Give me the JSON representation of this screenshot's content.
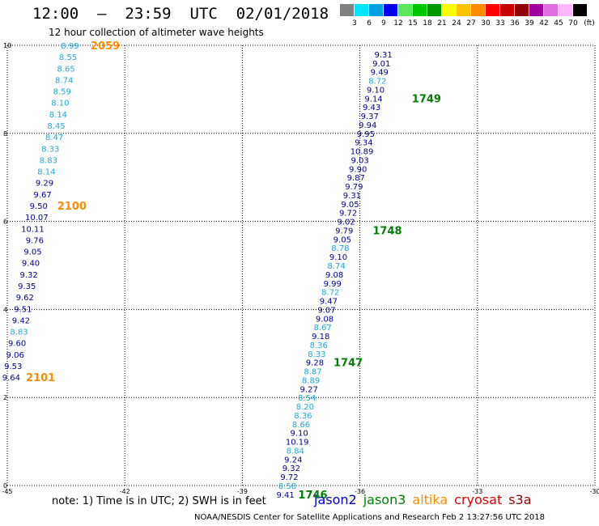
{
  "header": {
    "title": "12:00  —  23:59  UTC  02/01/2018",
    "subtitle": "12 hour collection of altimeter wave heights"
  },
  "color_scale": {
    "unit": "(ft)",
    "entries": [
      {
        "color": "#808080",
        "label": "3"
      },
      {
        "color": "#00e5ff",
        "label": "6"
      },
      {
        "color": "#00a0e0",
        "label": "9"
      },
      {
        "color": "#0000ee",
        "label": "12"
      },
      {
        "color": "#58e858",
        "label": "15"
      },
      {
        "color": "#00c800",
        "label": "18"
      },
      {
        "color": "#009800",
        "label": "21"
      },
      {
        "color": "#ffff00",
        "label": "24"
      },
      {
        "color": "#ffc400",
        "label": "27"
      },
      {
        "color": "#ff8c00",
        "label": "30"
      },
      {
        "color": "#ff0000",
        "label": "33"
      },
      {
        "color": "#c80000",
        "label": "36"
      },
      {
        "color": "#900000",
        "label": "39"
      },
      {
        "color": "#a000a0",
        "label": "42"
      },
      {
        "color": "#e070e0",
        "label": "45"
      },
      {
        "color": "#ffb8ff",
        "label": "70"
      },
      {
        "color": "#000000",
        "label": ""
      }
    ]
  },
  "axes": {
    "x_ticks": [
      "-45",
      "-42",
      "-39",
      "-36",
      "-33",
      "-30"
    ],
    "y_ticks": [
      "0",
      "2",
      "4",
      "6",
      "8",
      "10"
    ],
    "xlim": [
      -45,
      -30
    ],
    "ylim": [
      0,
      10
    ]
  },
  "colors": {
    "cyan": "#20a8d8",
    "blue": "#000090",
    "green": "#008000",
    "orange": "#ff8c00"
  },
  "tracks": [
    {
      "satellite": "left track",
      "points": [
        {
          "value": "8.99",
          "lon": -43.4,
          "lat": 10.0,
          "c": "cyan"
        },
        {
          "value": "8.55",
          "lon": -43.45,
          "lat": 9.74,
          "c": "cyan"
        },
        {
          "value": "8.65",
          "lon": -43.5,
          "lat": 9.48,
          "c": "cyan"
        },
        {
          "value": "8.74",
          "lon": -43.55,
          "lat": 9.22,
          "c": "cyan"
        },
        {
          "value": "8.59",
          "lon": -43.6,
          "lat": 8.96,
          "c": "cyan"
        },
        {
          "value": "8.10",
          "lon": -43.65,
          "lat": 8.7,
          "c": "cyan"
        },
        {
          "value": "8.14",
          "lon": -43.7,
          "lat": 8.44,
          "c": "cyan"
        },
        {
          "value": "8.45",
          "lon": -43.75,
          "lat": 8.18,
          "c": "cyan"
        },
        {
          "value": "8.47",
          "lon": -43.8,
          "lat": 7.92,
          "c": "cyan"
        },
        {
          "value": "8.33",
          "lon": -43.9,
          "lat": 7.66,
          "c": "cyan"
        },
        {
          "value": "8.83",
          "lon": -43.95,
          "lat": 7.4,
          "c": "cyan"
        },
        {
          "value": "8.14",
          "lon": -44.0,
          "lat": 7.14,
          "c": "cyan"
        },
        {
          "value": "9.29",
          "lon": -44.05,
          "lat": 6.88,
          "c": "blue"
        },
        {
          "value": "9.67",
          "lon": -44.1,
          "lat": 6.62,
          "c": "blue"
        },
        {
          "value": "9.50",
          "lon": -44.2,
          "lat": 6.36,
          "c": "blue"
        },
        {
          "value": "10.07",
          "lon": -44.25,
          "lat": 6.1,
          "c": "blue"
        },
        {
          "value": "10.11",
          "lon": -44.35,
          "lat": 5.84,
          "c": "blue"
        },
        {
          "value": "9.76",
          "lon": -44.3,
          "lat": 5.58,
          "c": "blue"
        },
        {
          "value": "9.05",
          "lon": -44.35,
          "lat": 5.32,
          "c": "blue"
        },
        {
          "value": "9.40",
          "lon": -44.4,
          "lat": 5.06,
          "c": "blue"
        },
        {
          "value": "9.32",
          "lon": -44.45,
          "lat": 4.8,
          "c": "blue"
        },
        {
          "value": "9.35",
          "lon": -44.5,
          "lat": 4.54,
          "c": "blue"
        },
        {
          "value": "9.62",
          "lon": -44.55,
          "lat": 4.28,
          "c": "blue"
        },
        {
          "value": "9.51",
          "lon": -44.6,
          "lat": 4.02,
          "c": "blue"
        },
        {
          "value": "9.42",
          "lon": -44.65,
          "lat": 3.76,
          "c": "blue"
        },
        {
          "value": "8.83",
          "lon": -44.7,
          "lat": 3.5,
          "c": "cyan"
        },
        {
          "value": "9.60",
          "lon": -44.75,
          "lat": 3.24,
          "c": "blue"
        },
        {
          "value": "9.06",
          "lon": -44.8,
          "lat": 2.98,
          "c": "blue"
        },
        {
          "value": "9.53",
          "lon": -44.85,
          "lat": 2.72,
          "c": "blue"
        },
        {
          "value": "9.64",
          "lon": -44.9,
          "lat": 2.46,
          "c": "blue"
        }
      ],
      "times": [
        {
          "label": "2059",
          "lon": -42.5,
          "lat": 10.0,
          "c": "orange"
        },
        {
          "label": "2100",
          "lon": -43.35,
          "lat": 6.36,
          "c": "orange"
        },
        {
          "label": "2101",
          "lon": -44.15,
          "lat": 2.46,
          "c": "orange"
        }
      ]
    },
    {
      "satellite": "right track",
      "points": [
        {
          "value": "9.31",
          "lon": -35.4,
          "lat": 9.8,
          "c": "blue"
        },
        {
          "value": "9.01",
          "lon": -35.45,
          "lat": 9.6,
          "c": "blue"
        },
        {
          "value": "9.49",
          "lon": -35.5,
          "lat": 9.4,
          "c": "blue"
        },
        {
          "value": "8.72",
          "lon": -35.55,
          "lat": 9.2,
          "c": "cyan"
        },
        {
          "value": "9.10",
          "lon": -35.6,
          "lat": 9.0,
          "c": "blue"
        },
        {
          "value": "9.14",
          "lon": -35.65,
          "lat": 8.8,
          "c": "blue"
        },
        {
          "value": "9.43",
          "lon": -35.7,
          "lat": 8.6,
          "c": "blue"
        },
        {
          "value": "9.37",
          "lon": -35.75,
          "lat": 8.4,
          "c": "blue"
        },
        {
          "value": "9.94",
          "lon": -35.8,
          "lat": 8.2,
          "c": "blue"
        },
        {
          "value": "9.95",
          "lon": -35.85,
          "lat": 8.0,
          "c": "blue"
        },
        {
          "value": "9.34",
          "lon": -35.9,
          "lat": 7.8,
          "c": "blue"
        },
        {
          "value": "10.89",
          "lon": -35.95,
          "lat": 7.6,
          "c": "blue"
        },
        {
          "value": "9.03",
          "lon": -36.0,
          "lat": 7.4,
          "c": "blue"
        },
        {
          "value": "9.90",
          "lon": -36.05,
          "lat": 7.2,
          "c": "blue"
        },
        {
          "value": "9.87",
          "lon": -36.1,
          "lat": 7.0,
          "c": "blue"
        },
        {
          "value": "9.79",
          "lon": -36.15,
          "lat": 6.8,
          "c": "blue"
        },
        {
          "value": "9.31",
          "lon": -36.2,
          "lat": 6.6,
          "c": "blue"
        },
        {
          "value": "9.05",
          "lon": -36.25,
          "lat": 6.4,
          "c": "blue"
        },
        {
          "value": "9.72",
          "lon": -36.3,
          "lat": 6.2,
          "c": "blue"
        },
        {
          "value": "9.02",
          "lon": -36.35,
          "lat": 6.0,
          "c": "blue"
        },
        {
          "value": "9.79",
          "lon": -36.4,
          "lat": 5.8,
          "c": "blue"
        },
        {
          "value": "9.05",
          "lon": -36.45,
          "lat": 5.6,
          "c": "blue"
        },
        {
          "value": "8.78",
          "lon": -36.5,
          "lat": 5.4,
          "c": "cyan"
        },
        {
          "value": "9.10",
          "lon": -36.55,
          "lat": 5.2,
          "c": "blue"
        },
        {
          "value": "8.74",
          "lon": -36.6,
          "lat": 5.0,
          "c": "cyan"
        },
        {
          "value": "9.08",
          "lon": -36.65,
          "lat": 4.8,
          "c": "blue"
        },
        {
          "value": "9.99",
          "lon": -36.7,
          "lat": 4.6,
          "c": "blue"
        },
        {
          "value": "8.72",
          "lon": -36.75,
          "lat": 4.4,
          "c": "cyan"
        },
        {
          "value": "9.47",
          "lon": -36.8,
          "lat": 4.2,
          "c": "blue"
        },
        {
          "value": "9.07",
          "lon": -36.85,
          "lat": 4.0,
          "c": "blue"
        },
        {
          "value": "9.08",
          "lon": -36.9,
          "lat": 3.8,
          "c": "blue"
        },
        {
          "value": "8.67",
          "lon": -36.95,
          "lat": 3.6,
          "c": "cyan"
        },
        {
          "value": "9.18",
          "lon": -37.0,
          "lat": 3.4,
          "c": "blue"
        },
        {
          "value": "8.36",
          "lon": -37.05,
          "lat": 3.2,
          "c": "cyan"
        },
        {
          "value": "8.33",
          "lon": -37.1,
          "lat": 3.0,
          "c": "cyan"
        },
        {
          "value": "9.28",
          "lon": -37.15,
          "lat": 2.8,
          "c": "blue"
        },
        {
          "value": "8.87",
          "lon": -37.2,
          "lat": 2.6,
          "c": "cyan"
        },
        {
          "value": "8.89",
          "lon": -37.25,
          "lat": 2.4,
          "c": "cyan"
        },
        {
          "value": "9.27",
          "lon": -37.3,
          "lat": 2.2,
          "c": "blue"
        },
        {
          "value": "8.54",
          "lon": -37.35,
          "lat": 2.0,
          "c": "cyan"
        },
        {
          "value": "8.20",
          "lon": -37.4,
          "lat": 1.8,
          "c": "cyan"
        },
        {
          "value": "8.36",
          "lon": -37.45,
          "lat": 1.6,
          "c": "cyan"
        },
        {
          "value": "8.66",
          "lon": -37.5,
          "lat": 1.4,
          "c": "cyan"
        },
        {
          "value": "9.10",
          "lon": -37.55,
          "lat": 1.2,
          "c": "blue"
        },
        {
          "value": "10.19",
          "lon": -37.6,
          "lat": 1.0,
          "c": "blue"
        },
        {
          "value": "8.84",
          "lon": -37.65,
          "lat": 0.8,
          "c": "cyan"
        },
        {
          "value": "9.24",
          "lon": -37.7,
          "lat": 0.6,
          "c": "blue"
        },
        {
          "value": "9.32",
          "lon": -37.75,
          "lat": 0.4,
          "c": "blue"
        },
        {
          "value": "9.72",
          "lon": -37.8,
          "lat": 0.2,
          "c": "blue"
        },
        {
          "value": "8.58",
          "lon": -37.85,
          "lat": 0.0,
          "c": "cyan"
        },
        {
          "value": "9.41",
          "lon": -37.9,
          "lat": -0.2,
          "c": "blue"
        }
      ],
      "times": [
        {
          "label": "1749",
          "lon": -34.3,
          "lat": 8.8,
          "c": "green"
        },
        {
          "label": "1748",
          "lon": -35.3,
          "lat": 5.8,
          "c": "green"
        },
        {
          "label": "1747",
          "lon": -36.3,
          "lat": 2.8,
          "c": "green"
        },
        {
          "label": "1746",
          "lon": -37.2,
          "lat": -0.2,
          "c": "green"
        }
      ]
    }
  ],
  "note": "note:  1) Time is in UTC;  2) SWH is in feet",
  "legend": [
    {
      "name": "jason2",
      "color": "#0000c8"
    },
    {
      "name": "jason3",
      "color": "#008000"
    },
    {
      "name": "altika",
      "color": "#ff8c00"
    },
    {
      "name": "cryosat",
      "color": "#e00000"
    },
    {
      "name": "s3a",
      "color": "#900000"
    }
  ],
  "footer": "NOAA/NESDIS Center for Satellite Applications and Research     Feb  2 13:27:56 UTC 2018"
}
